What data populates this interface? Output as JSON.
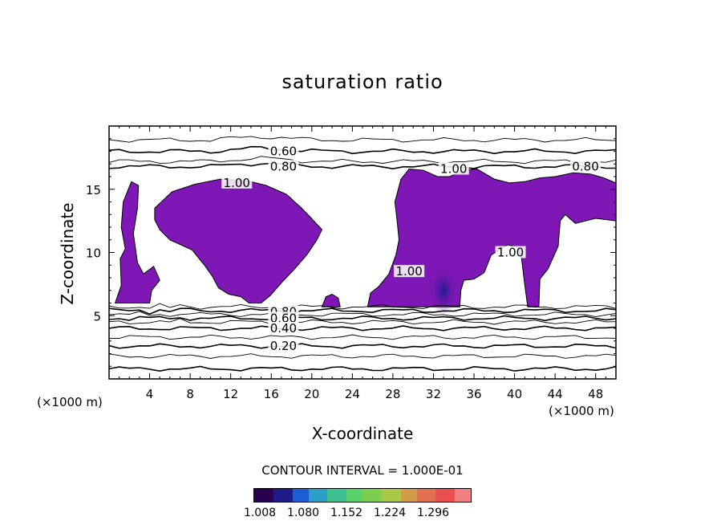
{
  "chart_data": {
    "type": "contour",
    "title": "saturation ratio",
    "xlabel": "X-coordinate",
    "ylabel": "Z-coordinate",
    "x_unit": "(×1000 m)",
    "xlim": [
      0,
      50
    ],
    "ylim": [
      0,
      20
    ],
    "x_ticks": [
      4,
      8,
      12,
      16,
      20,
      24,
      28,
      32,
      36,
      40,
      44,
      48
    ],
    "y_ticks": [
      5,
      10,
      15
    ],
    "grid": false,
    "contour_interval_label": "CONTOUR INTERVAL = 1.000E-01",
    "contour_labels": [
      {
        "text": "0.60",
        "x": 17.2,
        "y": 18.0
      },
      {
        "text": "0.80",
        "x": 17.2,
        "y": 16.8
      },
      {
        "text": "0.80",
        "x": 47.0,
        "y": 16.8
      },
      {
        "text": "1.00",
        "x": 12.6,
        "y": 15.5
      },
      {
        "text": "1.00",
        "x": 34.0,
        "y": 16.6
      },
      {
        "text": "1.00",
        "x": 29.6,
        "y": 8.5
      },
      {
        "text": "1.00",
        "x": 39.6,
        "y": 10.0
      },
      {
        "text": "0.80",
        "x": 17.2,
        "y": 5.3
      },
      {
        "text": "0.60",
        "x": 17.2,
        "y": 4.8
      },
      {
        "text": "0.40",
        "x": 17.2,
        "y": 4.0
      },
      {
        "text": "0.20",
        "x": 17.2,
        "y": 2.6
      }
    ],
    "contour_lines_y": [
      0.8,
      1.8,
      2.6,
      3.3,
      4.0,
      4.5,
      4.8,
      5.1,
      5.4,
      5.7,
      16.8,
      17.2,
      18.0,
      18.9
    ],
    "shading": {
      "min_value": 1.008,
      "colormap_ticks": [
        "1.008",
        "1.080",
        "1.152",
        "1.224",
        "1.296"
      ],
      "fill_color": "#7e17b5",
      "core_color": "#2a1a9a",
      "colormap": [
        "#2a0050",
        "#1c1c8a",
        "#1e5cd4",
        "#2aa0c8",
        "#3cc090",
        "#5ad06a",
        "#7ad04e",
        "#a8c846",
        "#d09c48",
        "#e07050",
        "#e85050",
        "#f08080"
      ]
    },
    "supersaturated_regions": [
      {
        "name": "left-small",
        "points": [
          [
            0.6,
            6.0
          ],
          [
            1.2,
            7.4
          ],
          [
            1.1,
            9.5
          ],
          [
            1.6,
            10.3
          ],
          [
            1.2,
            12.0
          ],
          [
            1.4,
            14.0
          ],
          [
            2.2,
            15.6
          ],
          [
            2.9,
            15.3
          ],
          [
            2.8,
            13.5
          ],
          [
            2.4,
            11.5
          ],
          [
            2.8,
            9.2
          ],
          [
            3.4,
            8.3
          ],
          [
            4.4,
            8.9
          ],
          [
            5.0,
            7.8
          ],
          [
            4.2,
            7.0
          ],
          [
            4.0,
            6.0
          ]
        ]
      },
      {
        "name": "left-blob",
        "points": [
          [
            4.5,
            13.5
          ],
          [
            6.2,
            14.8
          ],
          [
            8.5,
            15.4
          ],
          [
            11.0,
            15.8
          ],
          [
            13.5,
            15.7
          ],
          [
            15.5,
            15.3
          ],
          [
            17.5,
            14.6
          ],
          [
            19.0,
            13.5
          ],
          [
            20.2,
            12.5
          ],
          [
            21.0,
            11.8
          ],
          [
            20.5,
            11.0
          ],
          [
            19.5,
            9.8
          ],
          [
            18.3,
            8.7
          ],
          [
            17.0,
            7.6
          ],
          [
            15.9,
            6.6
          ],
          [
            15.0,
            6.0
          ],
          [
            13.8,
            6.0
          ],
          [
            13.0,
            6.5
          ],
          [
            11.8,
            6.7
          ],
          [
            10.8,
            7.2
          ],
          [
            10.2,
            8.1
          ],
          [
            9.5,
            8.9
          ],
          [
            8.2,
            10.2
          ],
          [
            7.1,
            10.6
          ],
          [
            6.0,
            11.0
          ],
          [
            5.0,
            11.8
          ],
          [
            4.5,
            12.6
          ]
        ]
      },
      {
        "name": "center-small",
        "points": [
          [
            21.0,
            5.7
          ],
          [
            21.4,
            6.5
          ],
          [
            22.0,
            6.7
          ],
          [
            22.6,
            6.4
          ],
          [
            22.8,
            5.7
          ]
        ]
      },
      {
        "name": "right-blob",
        "points": [
          [
            25.5,
            5.7
          ],
          [
            25.8,
            6.8
          ],
          [
            26.6,
            7.3
          ],
          [
            27.6,
            8.3
          ],
          [
            28.3,
            9.8
          ],
          [
            28.6,
            11.0
          ],
          [
            28.4,
            12.6
          ],
          [
            28.2,
            14.0
          ],
          [
            28.8,
            15.8
          ],
          [
            29.6,
            16.6
          ],
          [
            31.0,
            16.5
          ],
          [
            32.4,
            16.0
          ],
          [
            33.6,
            16.0
          ],
          [
            35.0,
            16.5
          ],
          [
            36.3,
            16.6
          ],
          [
            38.0,
            15.8
          ],
          [
            39.5,
            15.5
          ],
          [
            41.0,
            15.6
          ],
          [
            42.5,
            15.9
          ],
          [
            44.0,
            16.0
          ],
          [
            45.8,
            16.3
          ],
          [
            47.5,
            16.2
          ],
          [
            48.8,
            15.9
          ],
          [
            50.0,
            15.5
          ],
          [
            50.0,
            12.5
          ],
          [
            48.0,
            12.7
          ],
          [
            46.0,
            12.3
          ],
          [
            45.0,
            13.0
          ],
          [
            44.5,
            12.5
          ],
          [
            44.3,
            10.5
          ],
          [
            43.3,
            8.7
          ],
          [
            42.5,
            7.9
          ],
          [
            42.4,
            5.7
          ],
          [
            41.3,
            5.7
          ],
          [
            41.0,
            7.5
          ],
          [
            40.7,
            9.5
          ],
          [
            40.3,
            10.4
          ],
          [
            39.3,
            10.6
          ],
          [
            37.7,
            9.8
          ],
          [
            37.0,
            8.4
          ],
          [
            36.0,
            7.9
          ],
          [
            35.0,
            7.8
          ],
          [
            34.7,
            7.0
          ],
          [
            34.6,
            5.7
          ]
        ]
      }
    ]
  }
}
